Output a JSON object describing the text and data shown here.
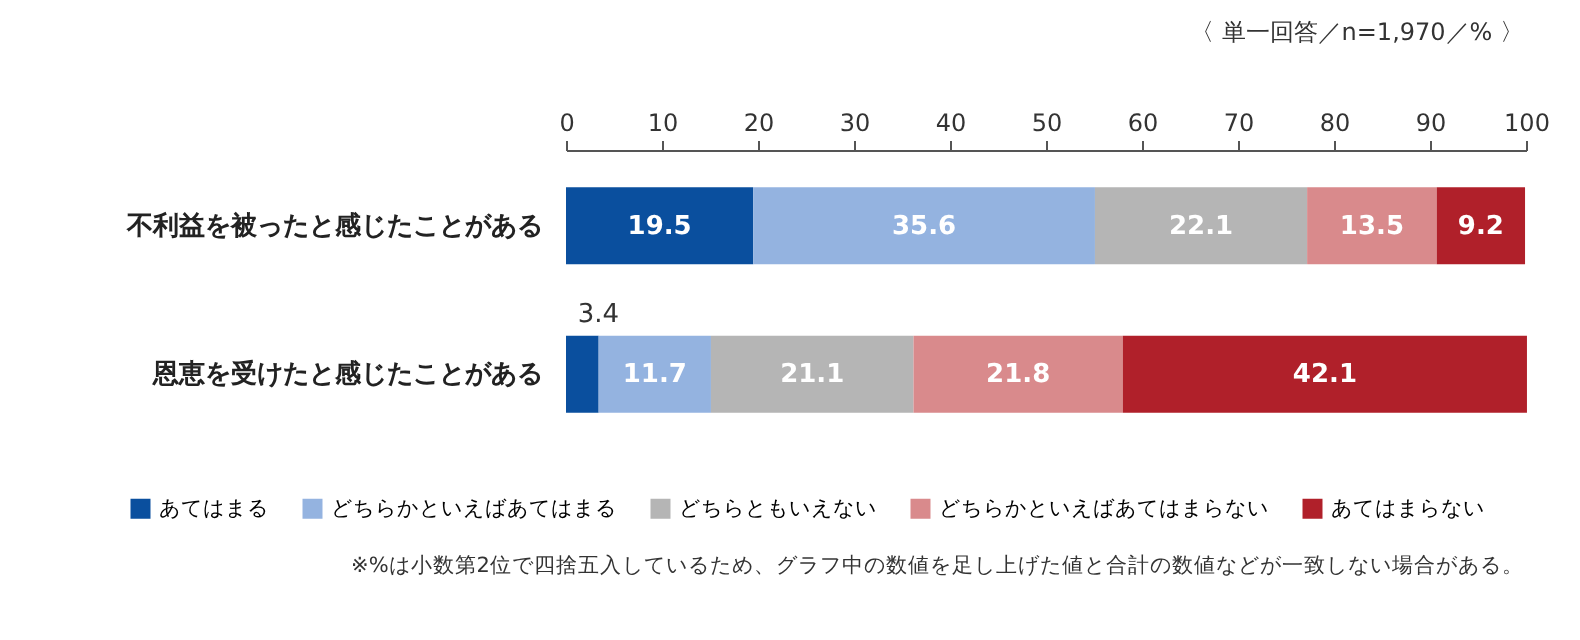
{
  "chart_data": {
    "type": "bar",
    "orientation": "horizontal",
    "stacked": true,
    "categories": [
      "不利益を被ったと感じたことがある",
      "恩恵を受けたと感じたことがある"
    ],
    "series": [
      {
        "name": "あてはまる",
        "color": "#0a4f9e",
        "values": [
          19.5,
          3.4
        ]
      },
      {
        "name": "どちらかといえばあてはまる",
        "color": "#94b3e0",
        "values": [
          35.6,
          11.7
        ]
      },
      {
        "name": "どちらともいえない",
        "color": "#b5b5b5",
        "values": [
          22.1,
          21.1
        ]
      },
      {
        "name": "どちらかといえばあてはまらない",
        "color": "#d98a8c",
        "values": [
          13.5,
          21.8
        ]
      },
      {
        "name": "あてはまらない",
        "color": "#b0202a",
        "values": [
          9.2,
          42.1
        ]
      }
    ],
    "xlim": [
      0,
      100
    ],
    "xticks": [
      0,
      10,
      20,
      30,
      40,
      50,
      60,
      70,
      80,
      90,
      100
    ],
    "grid": false,
    "legend": "bottom",
    "data_labels": true,
    "annotations": [
      "〈 単一回答／n=1,970／% 〉",
      "※%は小数第2位で四捨五入しているため、グラフ中の数値を足し上げた値と合計の数値などが一致しない場合がある。"
    ]
  }
}
